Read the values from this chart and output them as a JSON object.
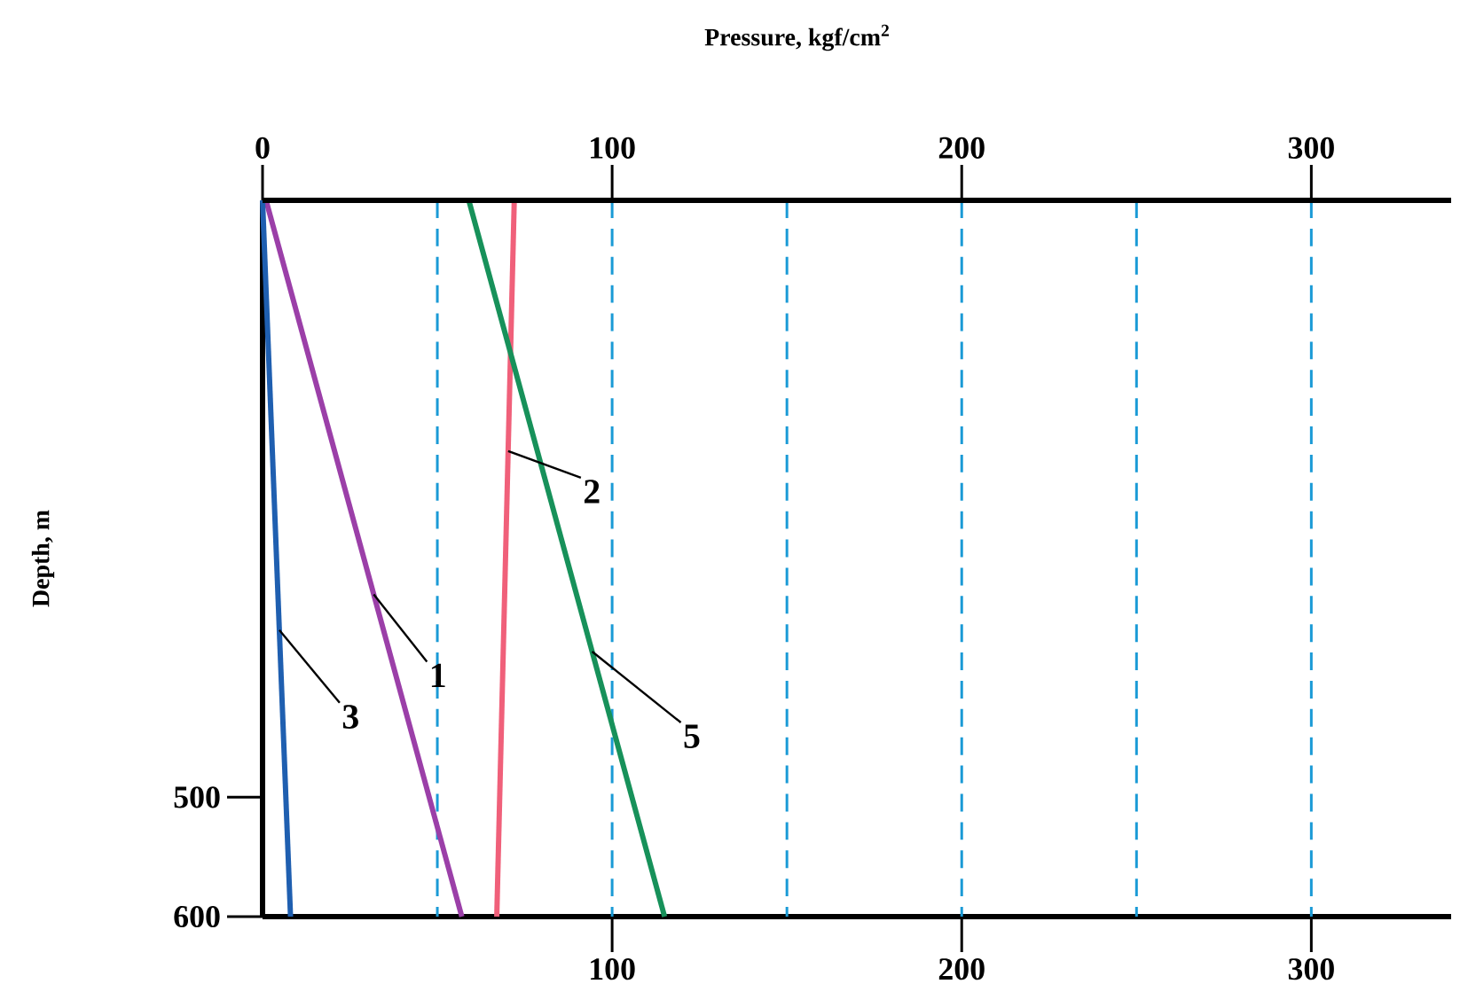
{
  "chart_data": {
    "type": "line",
    "x2label": "Pressure, kgf/cm$^{2}$",
    "ylabel": "Depth, m",
    "series": [
      {
        "name": "1",
        "color": "#9b3fa8",
        "x": [
          1,
          57
        ],
        "values": [
          0,
          600
        ]
      },
      {
        "name": "2",
        "color": "#f0607a",
        "x": [
          72,
          67
        ],
        "values": [
          0,
          600
        ]
      },
      {
        "name": "3",
        "color": "#1f5fb0",
        "x": [
          0,
          8
        ],
        "values": [
          0,
          600
        ]
      },
      {
        "name": "5",
        "color": "#17915a",
        "x": [
          59,
          115
        ],
        "values": [
          0,
          600
        ]
      }
    ],
    "xlim": [
      0,
      340
    ],
    "ylim": [
      600,
      0
    ],
    "xticks": [
      100,
      200,
      300
    ],
    "x2lim": [
      0,
      340
    ],
    "x2ticks": [
      0,
      100,
      200,
      300
    ],
    "yticks": [
      500,
      600
    ],
    "ref_lines": [
      {
        "axis": "x",
        "value": 50,
        "color": "#1a9ad6",
        "line_style": "dashed"
      },
      {
        "axis": "x",
        "value": 100,
        "color": "#1a9ad6",
        "line_style": "dashed"
      },
      {
        "axis": "x",
        "value": 150,
        "color": "#1a9ad6",
        "line_style": "dashed"
      },
      {
        "axis": "x",
        "value": 200,
        "color": "#1a9ad6",
        "line_style": "dashed"
      },
      {
        "axis": "x",
        "value": 250,
        "color": "#1a9ad6",
        "line_style": "dashed"
      },
      {
        "axis": "x",
        "value": 300,
        "color": "#1a9ad6",
        "line_style": "dashed"
      }
    ],
    "line_style": "solid",
    "marker": "none"
  }
}
